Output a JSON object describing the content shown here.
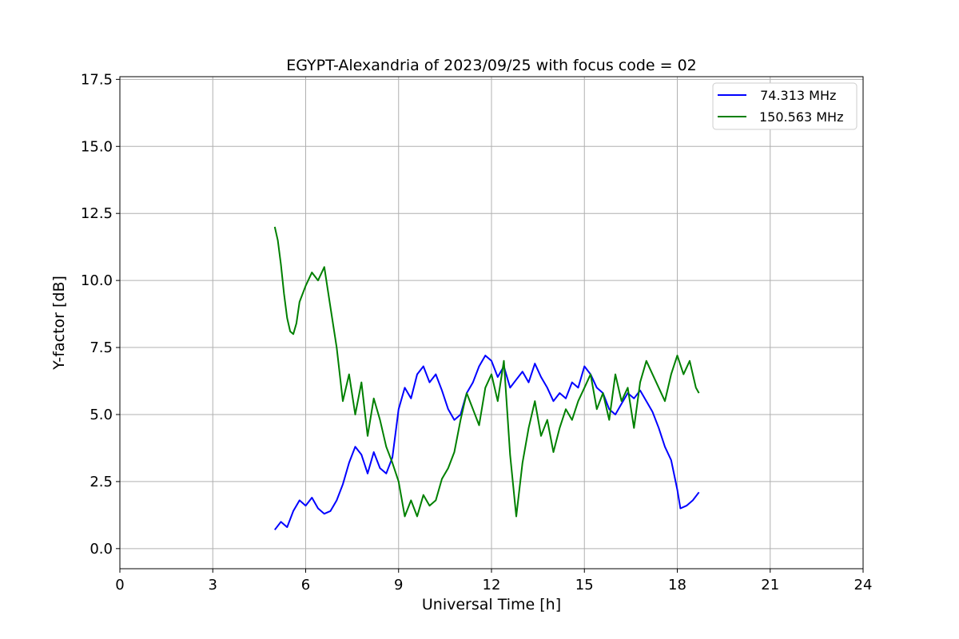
{
  "chart_data": {
    "type": "line",
    "title": "EGYPT-Alexandria of 2023/09/25 with focus code = 02",
    "xlabel": "Universal Time [h]",
    "ylabel": "Y-factor [dB]",
    "xlim": [
      0,
      24
    ],
    "ylim": [
      -0.75,
      17.6
    ],
    "xticks": [
      0,
      3,
      6,
      9,
      12,
      15,
      18,
      21,
      24
    ],
    "xtick_labels": [
      "0",
      "3",
      "6",
      "9",
      "12",
      "15",
      "18",
      "21",
      "24"
    ],
    "yticks": [
      0,
      2.5,
      5,
      7.5,
      10,
      12.5,
      15,
      17.5
    ],
    "ytick_labels": [
      "0.0",
      "2.5",
      "5.0",
      "7.5",
      "10.0",
      "12.5",
      "15.0",
      "17.5"
    ],
    "grid": true,
    "legend_position": "top-right",
    "series": [
      {
        "name": " 74.313 MHz",
        "color": "#0000ff",
        "points": [
          [
            5.0,
            0.7
          ],
          [
            5.2,
            1.0
          ],
          [
            5.4,
            0.8
          ],
          [
            5.6,
            1.4
          ],
          [
            5.8,
            1.8
          ],
          [
            6.0,
            1.6
          ],
          [
            6.2,
            1.9
          ],
          [
            6.4,
            1.5
          ],
          [
            6.6,
            1.3
          ],
          [
            6.8,
            1.4
          ],
          [
            7.0,
            1.8
          ],
          [
            7.2,
            2.4
          ],
          [
            7.4,
            3.2
          ],
          [
            7.6,
            3.8
          ],
          [
            7.8,
            3.5
          ],
          [
            8.0,
            2.8
          ],
          [
            8.2,
            3.6
          ],
          [
            8.4,
            3.0
          ],
          [
            8.6,
            2.8
          ],
          [
            8.8,
            3.4
          ],
          [
            9.0,
            5.2
          ],
          [
            9.2,
            6.0
          ],
          [
            9.4,
            5.6
          ],
          [
            9.6,
            6.5
          ],
          [
            9.8,
            6.8
          ],
          [
            10.0,
            6.2
          ],
          [
            10.2,
            6.5
          ],
          [
            10.4,
            5.9
          ],
          [
            10.6,
            5.2
          ],
          [
            10.8,
            4.8
          ],
          [
            11.0,
            5.0
          ],
          [
            11.2,
            5.8
          ],
          [
            11.4,
            6.2
          ],
          [
            11.6,
            6.8
          ],
          [
            11.8,
            7.2
          ],
          [
            12.0,
            7.0
          ],
          [
            12.2,
            6.4
          ],
          [
            12.4,
            6.8
          ],
          [
            12.6,
            6.0
          ],
          [
            12.8,
            6.3
          ],
          [
            13.0,
            6.6
          ],
          [
            13.2,
            6.2
          ],
          [
            13.4,
            6.9
          ],
          [
            13.6,
            6.4
          ],
          [
            13.8,
            6.0
          ],
          [
            14.0,
            5.5
          ],
          [
            14.2,
            5.8
          ],
          [
            14.4,
            5.6
          ],
          [
            14.6,
            6.2
          ],
          [
            14.8,
            6.0
          ],
          [
            15.0,
            6.8
          ],
          [
            15.2,
            6.5
          ],
          [
            15.4,
            6.0
          ],
          [
            15.6,
            5.8
          ],
          [
            15.8,
            5.2
          ],
          [
            16.0,
            5.0
          ],
          [
            16.2,
            5.4
          ],
          [
            16.4,
            5.8
          ],
          [
            16.6,
            5.6
          ],
          [
            16.8,
            5.9
          ],
          [
            17.0,
            5.5
          ],
          [
            17.2,
            5.1
          ],
          [
            17.4,
            4.5
          ],
          [
            17.6,
            3.8
          ],
          [
            17.8,
            3.3
          ],
          [
            18.0,
            2.2
          ],
          [
            18.1,
            1.5
          ],
          [
            18.3,
            1.6
          ],
          [
            18.5,
            1.8
          ],
          [
            18.7,
            2.1
          ]
        ]
      },
      {
        "name": "150.563 MHz",
        "color": "#008000",
        "points": [
          [
            5.0,
            12.0
          ],
          [
            5.1,
            11.5
          ],
          [
            5.2,
            10.6
          ],
          [
            5.3,
            9.5
          ],
          [
            5.4,
            8.6
          ],
          [
            5.5,
            8.1
          ],
          [
            5.6,
            8.0
          ],
          [
            5.7,
            8.4
          ],
          [
            5.8,
            9.2
          ],
          [
            6.0,
            9.8
          ],
          [
            6.2,
            10.3
          ],
          [
            6.4,
            10.0
          ],
          [
            6.6,
            10.5
          ],
          [
            6.8,
            9.0
          ],
          [
            7.0,
            7.5
          ],
          [
            7.2,
            5.5
          ],
          [
            7.4,
            6.5
          ],
          [
            7.6,
            5.0
          ],
          [
            7.8,
            6.2
          ],
          [
            8.0,
            4.2
          ],
          [
            8.2,
            5.6
          ],
          [
            8.4,
            4.8
          ],
          [
            8.6,
            3.8
          ],
          [
            8.8,
            3.2
          ],
          [
            9.0,
            2.5
          ],
          [
            9.2,
            1.2
          ],
          [
            9.4,
            1.8
          ],
          [
            9.6,
            1.2
          ],
          [
            9.8,
            2.0
          ],
          [
            10.0,
            1.6
          ],
          [
            10.2,
            1.8
          ],
          [
            10.4,
            2.6
          ],
          [
            10.6,
            3.0
          ],
          [
            10.8,
            3.6
          ],
          [
            11.0,
            4.8
          ],
          [
            11.2,
            5.8
          ],
          [
            11.4,
            5.2
          ],
          [
            11.6,
            4.6
          ],
          [
            11.8,
            6.0
          ],
          [
            12.0,
            6.5
          ],
          [
            12.2,
            5.5
          ],
          [
            12.4,
            7.0
          ],
          [
            12.6,
            3.5
          ],
          [
            12.8,
            1.2
          ],
          [
            13.0,
            3.2
          ],
          [
            13.2,
            4.5
          ],
          [
            13.4,
            5.5
          ],
          [
            13.6,
            4.2
          ],
          [
            13.8,
            4.8
          ],
          [
            14.0,
            3.6
          ],
          [
            14.2,
            4.5
          ],
          [
            14.4,
            5.2
          ],
          [
            14.6,
            4.8
          ],
          [
            14.8,
            5.5
          ],
          [
            15.0,
            6.0
          ],
          [
            15.2,
            6.5
          ],
          [
            15.4,
            5.2
          ],
          [
            15.6,
            5.8
          ],
          [
            15.8,
            4.8
          ],
          [
            16.0,
            6.5
          ],
          [
            16.2,
            5.5
          ],
          [
            16.4,
            6.0
          ],
          [
            16.6,
            4.5
          ],
          [
            16.8,
            6.2
          ],
          [
            17.0,
            7.0
          ],
          [
            17.2,
            6.5
          ],
          [
            17.4,
            6.0
          ],
          [
            17.6,
            5.5
          ],
          [
            17.8,
            6.5
          ],
          [
            18.0,
            7.2
          ],
          [
            18.2,
            6.5
          ],
          [
            18.4,
            7.0
          ],
          [
            18.6,
            6.0
          ],
          [
            18.7,
            5.8
          ]
        ]
      }
    ]
  }
}
